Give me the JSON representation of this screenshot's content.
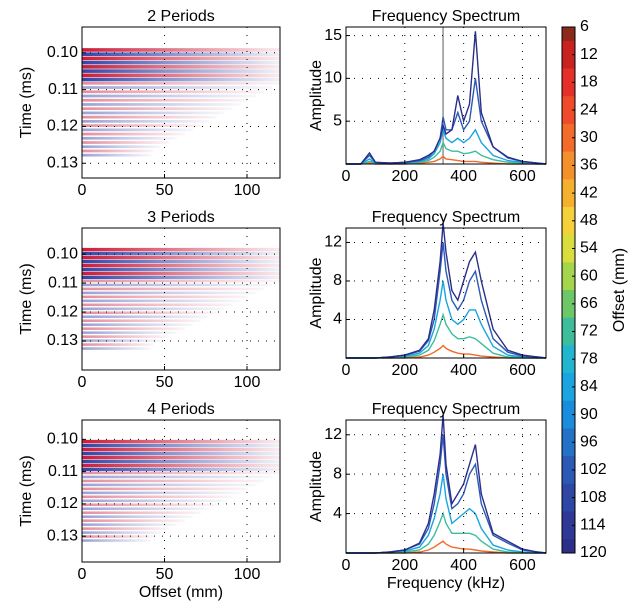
{
  "chart_data": [
    {
      "type": "heatmap",
      "title": "2 Periods",
      "ylabel": "Time (ms)",
      "xlim": [
        0,
        120
      ],
      "xticks": [
        0,
        50,
        100
      ],
      "ylim": [
        0.093,
        0.134
      ],
      "yticks": [
        {
          "value": 0.1,
          "label": "0.10"
        },
        0.11,
        0.12,
        0.13
      ],
      "grid": true
    },
    {
      "type": "line",
      "title": "Frequency Spectrum",
      "ylabel": "Amplitude",
      "xlim": [
        0,
        680
      ],
      "xticks": [
        0,
        200,
        400,
        600
      ],
      "ylim": [
        0,
        16
      ],
      "yticks": [
        5,
        10,
        15
      ],
      "grid": true,
      "vline": 330,
      "x": [
        0,
        50,
        80,
        100,
        150,
        200,
        250,
        280,
        300,
        320,
        330,
        340,
        360,
        380,
        400,
        420,
        440,
        460,
        500,
        550,
        600,
        650,
        680
      ],
      "series": [
        {
          "color": "#2b2f8a",
          "values": [
            0,
            0,
            1.3,
            0.2,
            0.1,
            0.2,
            0.5,
            1,
            1.5,
            3,
            4.5,
            3.5,
            4,
            8,
            5,
            7,
            15.5,
            6,
            2,
            0.8,
            0.3,
            0.1,
            0
          ]
        },
        {
          "color": "#2a5ab6",
          "values": [
            0,
            0,
            1,
            0.2,
            0.1,
            0.2,
            0.4,
            0.8,
            1.5,
            3,
            5.5,
            4,
            4,
            6,
            4,
            5,
            10,
            5,
            2,
            0.7,
            0.3,
            0.1,
            0
          ]
        },
        {
          "color": "#1aa4e0",
          "values": [
            0,
            0,
            0.6,
            0.1,
            0.1,
            0.1,
            0.3,
            0.6,
            1.2,
            2.5,
            4,
            3,
            2.5,
            3,
            2.5,
            3,
            4,
            2.5,
            1,
            0.4,
            0.2,
            0,
            0
          ]
        },
        {
          "color": "#3dbd9c",
          "values": [
            0,
            0,
            0.3,
            0.1,
            0,
            0.1,
            0.2,
            0.4,
            0.8,
            1.5,
            2.5,
            1.8,
            1.5,
            1.5,
            1.2,
            1.3,
            1.5,
            1,
            0.5,
            0.2,
            0.1,
            0,
            0
          ]
        },
        {
          "color": "#f26b2a",
          "values": [
            0,
            0,
            0.1,
            0,
            0,
            0,
            0.1,
            0.2,
            0.3,
            0.6,
            0.9,
            0.6,
            0.5,
            0.4,
            0.3,
            0.3,
            0.3,
            0.2,
            0.1,
            0,
            0,
            0,
            0
          ]
        }
      ]
    },
    {
      "type": "heatmap",
      "title": "3 Periods",
      "ylabel": "Time (ms)",
      "xlim": [
        0,
        120
      ],
      "xticks": [
        0,
        50,
        100
      ],
      "ylim": [
        0.091,
        0.14
      ],
      "yticks": [
        {
          "value": 0.1,
          "label": "0.10"
        },
        0.11,
        0.12,
        0.13
      ],
      "grid": true
    },
    {
      "type": "line",
      "title": "Frequency Spectrum",
      "ylabel": "Amplitude",
      "xlim": [
        0,
        680
      ],
      "xticks": [
        0,
        200,
        400,
        600
      ],
      "ylim": [
        0,
        13.5
      ],
      "yticks": [
        4,
        8,
        12
      ],
      "grid": true,
      "x": [
        0,
        50,
        80,
        100,
        150,
        200,
        250,
        280,
        300,
        320,
        330,
        340,
        360,
        380,
        400,
        420,
        440,
        460,
        500,
        550,
        600,
        650,
        680
      ],
      "series": [
        {
          "color": "#2b2f8a",
          "values": [
            0,
            0,
            0,
            0,
            0.1,
            0.3,
            0.8,
            2,
            5,
            10,
            14,
            11,
            7,
            6,
            8,
            10,
            11,
            8,
            3,
            0.8,
            0.3,
            0.1,
            0
          ]
        },
        {
          "color": "#2a5ab6",
          "values": [
            0,
            0,
            0,
            0,
            0.1,
            0.3,
            0.7,
            1.8,
            4,
            9,
            12,
            9,
            6,
            5,
            6,
            8,
            9,
            6,
            2,
            0.6,
            0.2,
            0.1,
            0
          ]
        },
        {
          "color": "#1aa4e0",
          "values": [
            0,
            0,
            0,
            0,
            0.1,
            0.2,
            0.5,
            1.3,
            3,
            6,
            8,
            6,
            4,
            3.5,
            4,
            5,
            5,
            3.5,
            1.2,
            0.3,
            0.1,
            0,
            0
          ]
        },
        {
          "color": "#3dbd9c",
          "values": [
            0,
            0,
            0,
            0,
            0,
            0.1,
            0.3,
            0.8,
            1.8,
            3.5,
            4.5,
            3.5,
            2.5,
            2,
            2,
            2.2,
            2,
            1.5,
            0.5,
            0.1,
            0,
            0,
            0
          ]
        },
        {
          "color": "#f26b2a",
          "values": [
            0,
            0,
            0,
            0,
            0,
            0,
            0.1,
            0.3,
            0.6,
            1,
            1.3,
            1,
            0.7,
            0.5,
            0.4,
            0.4,
            0.3,
            0.2,
            0.1,
            0,
            0,
            0,
            0
          ]
        }
      ]
    },
    {
      "type": "heatmap",
      "title": "4 Periods",
      "ylabel": "Time (ms)",
      "xlabel": "Offset (mm)",
      "xlim": [
        0,
        120
      ],
      "xticks": [
        0,
        50,
        100
      ],
      "ylim": [
        0.094,
        0.138
      ],
      "yticks": [
        {
          "value": 0.1,
          "label": "0.10"
        },
        0.11,
        0.12,
        0.13
      ],
      "grid": true
    },
    {
      "type": "line",
      "title": "Frequency Spectrum",
      "ylabel": "Amplitude",
      "xlabel": "Frequency (kHz)",
      "xlim": [
        0,
        680
      ],
      "xticks": [
        0,
        200,
        400,
        600
      ],
      "ylim": [
        0,
        13.5
      ],
      "yticks": [
        4,
        8,
        12
      ],
      "grid": true,
      "x": [
        0,
        50,
        80,
        100,
        150,
        200,
        250,
        280,
        300,
        320,
        330,
        340,
        360,
        380,
        400,
        420,
        440,
        460,
        500,
        550,
        600,
        650,
        680
      ],
      "series": [
        {
          "color": "#2b2f8a",
          "values": [
            0,
            0,
            0,
            0,
            0.1,
            0.3,
            1,
            3,
            6,
            10,
            14,
            9,
            5,
            6,
            7,
            9,
            11,
            6,
            2,
            1.2,
            0.4,
            0.1,
            0
          ]
        },
        {
          "color": "#2a5ab6",
          "values": [
            0,
            0,
            0,
            0,
            0.1,
            0.3,
            0.9,
            2.5,
            5,
            9,
            12,
            8,
            4.5,
            5,
            6,
            8,
            9,
            5,
            1.8,
            1,
            0.3,
            0.1,
            0
          ]
        },
        {
          "color": "#1aa4e0",
          "values": [
            0,
            0,
            0,
            0,
            0.1,
            0.2,
            0.6,
            1.8,
            3.5,
            6,
            8,
            5.5,
            3,
            3.5,
            4,
            4.5,
            4,
            2.5,
            0.8,
            0.3,
            0.1,
            0,
            0
          ]
        },
        {
          "color": "#3dbd9c",
          "values": [
            0,
            0,
            0,
            0,
            0,
            0.1,
            0.3,
            0.9,
            1.8,
            3.2,
            4,
            3,
            2,
            2,
            2,
            2,
            1.8,
            1.2,
            0.4,
            0.1,
            0,
            0,
            0
          ]
        },
        {
          "color": "#f26b2a",
          "values": [
            0,
            0,
            0,
            0,
            0,
            0,
            0.1,
            0.3,
            0.6,
            1,
            1.2,
            0.9,
            0.6,
            0.5,
            0.4,
            0.4,
            0.3,
            0.2,
            0.1,
            0,
            0,
            0,
            0
          ]
        }
      ]
    },
    {
      "type": "colorbar",
      "label": "Offset (mm)",
      "ticks": [
        6,
        12,
        18,
        24,
        30,
        36,
        42,
        48,
        54,
        60,
        66,
        72,
        78,
        84,
        90,
        96,
        102,
        108,
        114,
        120
      ],
      "colors": [
        "#8b2a1a",
        "#c8231e",
        "#e5302a",
        "#ef4a2a",
        "#f26b2a",
        "#f4902b",
        "#f5b02e",
        "#f4d03a",
        "#d9dd3e",
        "#a5d54a",
        "#6cc767",
        "#3dbd9c",
        "#22b5cf",
        "#1aa4e0",
        "#1a8cdc",
        "#2372c8",
        "#2a5ab6",
        "#2e46a4",
        "#2f3896",
        "#2b2f8a"
      ]
    }
  ]
}
